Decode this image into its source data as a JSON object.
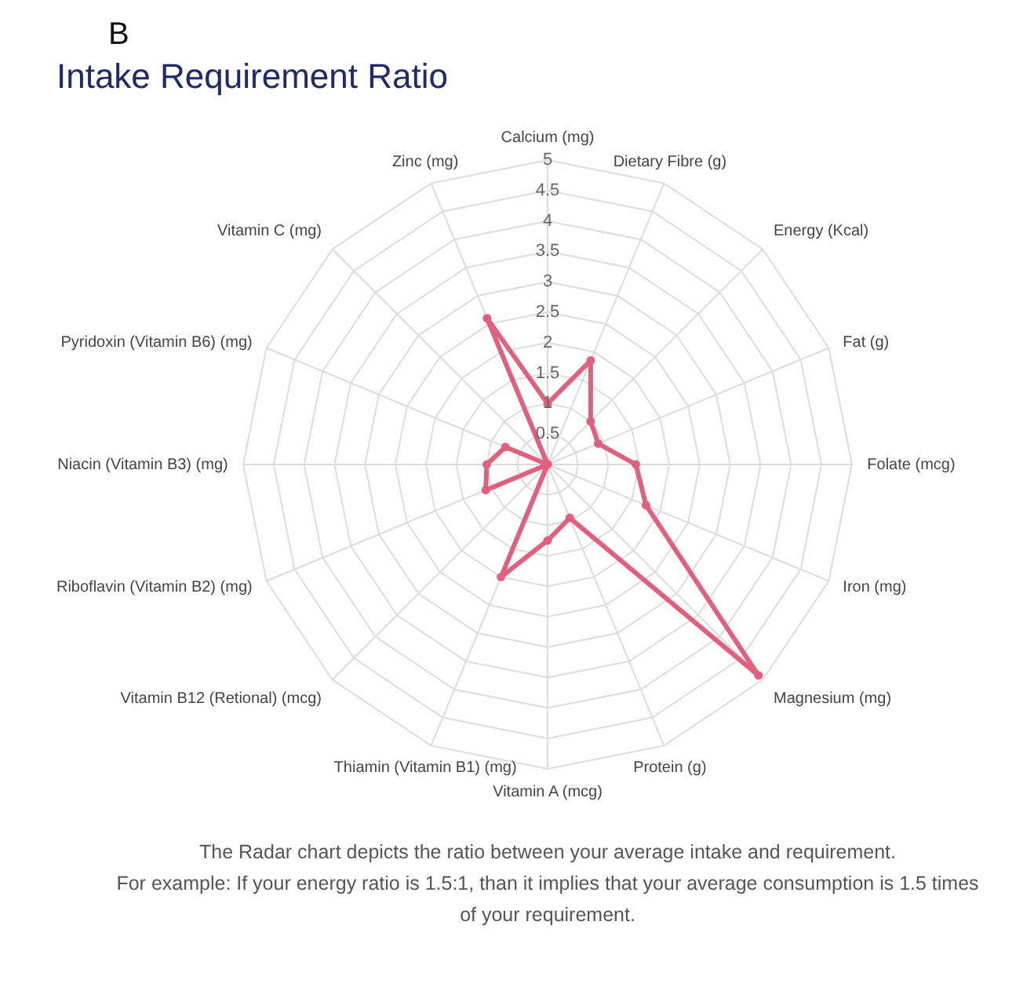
{
  "chart_data": {
    "type": "radar",
    "title": "Intake Requirement Ratio",
    "categories": [
      "Calcium (mg)",
      "Dietary Fibre (g)",
      "Energy (Kcal)",
      "Fat (g)",
      "Folate (mcg)",
      "Iron (mg)",
      "Magnesium (mg)",
      "Protein (g)",
      "Vitamin A (mcg)",
      "Thiamin (Vitamin B1) (mg)",
      "Vitamin B12 (Retional) (mcg)",
      "Riboflavin (Vitamin B2) (mg)",
      "Niacin (Vitamin B3) (mg)",
      "Pyridoxin (Vitamin B6) (mg)",
      "Vitamin C (mg)",
      "Zinc (mg)"
    ],
    "series": [
      {
        "color": "#e0607e",
        "values": [
          1.0,
          1.85,
          1.0,
          0.9,
          1.45,
          1.75,
          4.9,
          0.95,
          1.25,
          2.0,
          0,
          1.1,
          1.0,
          0.75,
          0,
          2.6
        ]
      }
    ],
    "ylim": [
      0,
      5
    ],
    "yticks": [
      0.5,
      1,
      1.5,
      2,
      2.5,
      3,
      3.5,
      4,
      4.5,
      5
    ],
    "grid": true,
    "marker": "circle",
    "annotations": [
      "B",
      "The Radar chart depicts the ratio between your average intake and requirement.",
      "For example: If your energy ratio is 1.5:1, than it implies that your average consumption is 1.5 times",
      "of your requirement."
    ]
  }
}
